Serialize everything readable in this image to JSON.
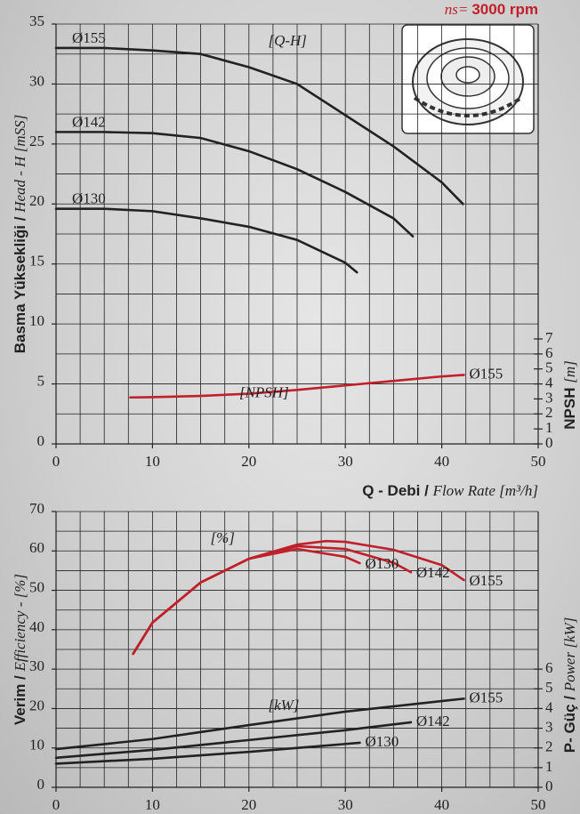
{
  "header": {
    "ns_label": "ns=",
    "rpm": "3000 rpm"
  },
  "chart_data": [
    {
      "type": "line",
      "ylabel": [
        "Basma Yüksekliği / ",
        "Head - H [mSS]"
      ],
      "y2label": [
        "NPSH ",
        "[m]"
      ],
      "xlim": [
        0,
        50
      ],
      "xticks": [
        0,
        10,
        20,
        30,
        40,
        50
      ],
      "ylim": [
        0,
        35
      ],
      "yticks": [
        0,
        5,
        10,
        15,
        20,
        25,
        30,
        35
      ],
      "y2lim": [
        0,
        28
      ],
      "y2ticks": [
        0,
        1,
        2,
        3,
        4,
        5,
        6,
        7
      ],
      "grid": true,
      "xgrid_step": 2.5,
      "ygrid_step": 2.5,
      "annotations": [
        {
          "text": "[Q-H]",
          "x": 22,
          "y": 33.5
        },
        {
          "text": "[NPSH]",
          "x": 19,
          "y": 4.2
        }
      ],
      "series": [
        {
          "name": "Ø155",
          "color": "#222222",
          "label_pos": "start",
          "x": [
            0,
            5,
            10,
            15,
            20,
            25,
            30,
            35,
            40,
            42.2
          ],
          "values": [
            33,
            33,
            32.8,
            32.5,
            31.4,
            30,
            27.4,
            24.8,
            21.8,
            20
          ]
        },
        {
          "name": "Ø142",
          "color": "#222222",
          "label_pos": "start",
          "x": [
            0,
            5,
            10,
            15,
            20,
            25,
            30,
            35,
            37
          ],
          "values": [
            26,
            26,
            25.9,
            25.5,
            24.4,
            22.9,
            21,
            18.8,
            17.3
          ]
        },
        {
          "name": "Ø130",
          "color": "#222222",
          "label_pos": "start",
          "x": [
            0,
            5,
            10,
            15,
            20,
            25,
            30,
            31.2
          ],
          "values": [
            19.6,
            19.6,
            19.4,
            18.8,
            18.1,
            17,
            15.1,
            14.3
          ]
        },
        {
          "name": "Ø155",
          "color": "#c0202a",
          "axis": "y2",
          "label_pos": "end",
          "x": [
            7.7,
            10,
            15,
            20,
            25,
            30,
            35,
            40,
            42.3
          ],
          "values": [
            3.1,
            3.12,
            3.2,
            3.35,
            3.6,
            3.9,
            4.2,
            4.5,
            4.6
          ]
        }
      ]
    },
    {
      "type": "line",
      "xlabel": [
        "Q - Debi / ",
        "Flow Rate [m³/h]"
      ],
      "ylabel": [
        "Verim / ",
        "Efficiency - [%]"
      ],
      "y2label": [
        "P- Güç / ",
        "Power [kW]"
      ],
      "xlim": [
        0,
        50
      ],
      "xticks": [
        0,
        10,
        20,
        30,
        40,
        50
      ],
      "ylim": [
        0,
        70
      ],
      "yticks": [
        0,
        10,
        20,
        30,
        40,
        50,
        60,
        70
      ],
      "y2lim": [
        0,
        14
      ],
      "y2ticks": [
        0,
        1,
        2,
        3,
        4,
        5,
        6
      ],
      "grid": true,
      "xgrid_step": 2.5,
      "ygrid_step": 5,
      "annotations": [
        {
          "text": "[%]",
          "x": 16,
          "y": 63
        },
        {
          "text": "[kW]",
          "x": 22,
          "y": 4.1,
          "axis": "y2"
        }
      ],
      "series": [
        {
          "name": "Ø155",
          "color": "#c0202a",
          "label_pos": "end",
          "x": [
            8,
            10,
            15,
            20,
            25,
            28,
            30,
            35,
            40,
            42.3
          ],
          "values": [
            33.9,
            41.8,
            52,
            58,
            61.6,
            62.5,
            62.3,
            60.3,
            56.4,
            52.6
          ]
        },
        {
          "name": "Ø142",
          "color": "#c0202a",
          "label_pos": "end",
          "x": [
            8,
            10,
            15,
            20,
            25,
            30,
            35,
            36.8
          ],
          "values": [
            33.9,
            41.8,
            52,
            58,
            61.2,
            60.5,
            57,
            54.6
          ]
        },
        {
          "name": "Ø130",
          "color": "#c0202a",
          "label_pos": "end",
          "x": [
            8,
            10,
            15,
            20,
            25,
            30,
            31.5
          ],
          "values": [
            33.9,
            41.8,
            52,
            58,
            60.5,
            58.5,
            56.9
          ]
        },
        {
          "name": "Ø155",
          "color": "#222222",
          "axis": "y2",
          "label_pos": "end",
          "x": [
            0,
            10,
            20,
            30,
            42.3
          ],
          "values": [
            1.94,
            2.45,
            3.16,
            3.84,
            4.5
          ]
        },
        {
          "name": "Ø142",
          "color": "#222222",
          "axis": "y2",
          "label_pos": "end",
          "x": [
            0,
            10,
            20,
            30,
            36.8
          ],
          "values": [
            1.5,
            1.9,
            2.4,
            2.9,
            3.3
          ]
        },
        {
          "name": "Ø130",
          "color": "#222222",
          "axis": "y2",
          "label_pos": "end",
          "x": [
            0,
            10,
            20,
            31.5
          ],
          "values": [
            1.2,
            1.45,
            1.8,
            2.26
          ]
        }
      ]
    }
  ]
}
